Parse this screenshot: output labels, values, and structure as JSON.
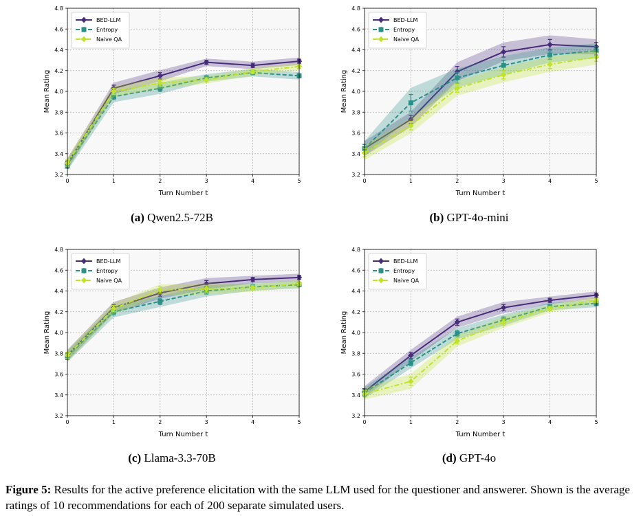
{
  "figure_caption": {
    "label": "Figure 5:",
    "text": "Results for the active preference elicitation with the same LLM used for the questioner and answerer. Shown is the average ratings of 10 recommendations for each of 200 separate simulated users."
  },
  "colors": {
    "bed": "#472c7a",
    "entropy": "#2a9088",
    "naive": "#bfe22a",
    "grid": "#b0b0b0",
    "plot_bg": "#f8f8f8"
  },
  "chart_data": [
    {
      "type": "line",
      "panel_label": "(a)",
      "title": "Qwen2.5-72B",
      "xlabel": "Turn Number t",
      "ylabel": "Mean Rating",
      "x": [
        0,
        1,
        2,
        3,
        4,
        5
      ],
      "xlim": [
        0,
        5
      ],
      "ylim": [
        3.2,
        4.8
      ],
      "yticks": [
        "3.2",
        "3.4",
        "3.6",
        "3.8",
        "4.0",
        "4.2",
        "4.4",
        "4.6",
        "4.8"
      ],
      "xticks": [
        "0",
        "1",
        "2",
        "3",
        "4",
        "5"
      ],
      "legend": "top-left",
      "series": [
        {
          "name": "BED-LLM",
          "values": [
            3.3,
            4.03,
            4.15,
            4.28,
            4.25,
            4.29
          ],
          "err": [
            0.03,
            0.03,
            0.03,
            0.02,
            0.02,
            0.02
          ]
        },
        {
          "name": "Entropy",
          "values": [
            3.29,
            3.95,
            4.03,
            4.13,
            4.18,
            4.15
          ],
          "err": [
            0.03,
            0.03,
            0.03,
            0.02,
            0.02,
            0.02
          ]
        },
        {
          "name": "Naive QA",
          "values": [
            3.31,
            4.0,
            4.08,
            4.11,
            4.19,
            4.24
          ],
          "err": [
            0.03,
            0.03,
            0.03,
            0.02,
            0.02,
            0.02
          ]
        }
      ]
    },
    {
      "type": "line",
      "panel_label": "(b)",
      "title": "GPT-4o-mini",
      "xlabel": "Turn Number t",
      "ylabel": "Mean Rating",
      "x": [
        0,
        1,
        2,
        3,
        4,
        5
      ],
      "xlim": [
        0,
        5
      ],
      "ylim": [
        3.2,
        4.8
      ],
      "yticks": [
        "3.2",
        "3.4",
        "3.6",
        "3.8",
        "4.0",
        "4.2",
        "4.4",
        "4.6",
        "4.8"
      ],
      "xticks": [
        "0",
        "1",
        "2",
        "3",
        "4",
        "5"
      ],
      "legend": "top-left",
      "series": [
        {
          "name": "BED-LLM",
          "values": [
            3.45,
            3.73,
            4.19,
            4.38,
            4.45,
            4.43
          ],
          "err": [
            0.04,
            0.04,
            0.05,
            0.05,
            0.05,
            0.04
          ]
        },
        {
          "name": "Entropy",
          "values": [
            3.45,
            3.89,
            4.13,
            4.25,
            4.35,
            4.39
          ],
          "err": [
            0.04,
            0.08,
            0.05,
            0.05,
            0.04,
            0.04
          ]
        },
        {
          "name": "Naive QA",
          "values": [
            3.41,
            3.67,
            4.03,
            4.16,
            4.26,
            4.33
          ],
          "err": [
            0.04,
            0.04,
            0.04,
            0.04,
            0.04,
            0.04
          ]
        }
      ]
    },
    {
      "type": "line",
      "panel_label": "(c)",
      "title": "Llama-3.3-70B",
      "xlabel": "Turn Number t",
      "ylabel": "Mean Rating",
      "x": [
        0,
        1,
        2,
        3,
        4,
        5
      ],
      "xlim": [
        0,
        5
      ],
      "ylim": [
        3.2,
        4.8
      ],
      "yticks": [
        "3.2",
        "3.4",
        "3.6",
        "3.8",
        "4.0",
        "4.2",
        "4.4",
        "4.6",
        "4.8"
      ],
      "xticks": [
        "0",
        "1",
        "2",
        "3",
        "4",
        "5"
      ],
      "legend": "top-left",
      "series": [
        {
          "name": "BED-LLM",
          "values": [
            3.78,
            4.24,
            4.38,
            4.47,
            4.51,
            4.53
          ],
          "err": [
            0.03,
            0.03,
            0.03,
            0.03,
            0.02,
            0.02
          ]
        },
        {
          "name": "Entropy",
          "values": [
            3.77,
            4.2,
            4.3,
            4.4,
            4.44,
            4.46
          ],
          "err": [
            0.03,
            0.03,
            0.03,
            0.03,
            0.02,
            0.02
          ]
        },
        {
          "name": "Naive QA",
          "values": [
            3.78,
            4.23,
            4.41,
            4.42,
            4.43,
            4.47
          ],
          "err": [
            0.03,
            0.03,
            0.03,
            0.03,
            0.02,
            0.02
          ]
        }
      ]
    },
    {
      "type": "line",
      "panel_label": "(d)",
      "title": "GPT-4o",
      "xlabel": "Turn Number t",
      "ylabel": "Mean Rating",
      "x": [
        0,
        1,
        2,
        3,
        4,
        5
      ],
      "xlim": [
        0,
        5
      ],
      "ylim": [
        3.2,
        4.8
      ],
      "yticks": [
        "3.2",
        "3.4",
        "3.6",
        "3.8",
        "4.0",
        "4.2",
        "4.4",
        "4.6",
        "4.8"
      ],
      "xticks": [
        "0",
        "1",
        "2",
        "3",
        "4",
        "5"
      ],
      "legend": "top-left",
      "series": [
        {
          "name": "BED-LLM",
          "values": [
            3.43,
            3.78,
            4.1,
            4.24,
            4.31,
            4.36
          ],
          "err": [
            0.03,
            0.03,
            0.03,
            0.03,
            0.02,
            0.02
          ]
        },
        {
          "name": "Entropy",
          "values": [
            3.42,
            3.71,
            3.99,
            4.12,
            4.25,
            4.28
          ],
          "err": [
            0.03,
            0.03,
            0.03,
            0.03,
            0.02,
            0.02
          ]
        },
        {
          "name": "Naive QA",
          "values": [
            3.41,
            3.53,
            3.92,
            4.1,
            4.23,
            4.31
          ],
          "err": [
            0.03,
            0.04,
            0.03,
            0.03,
            0.02,
            0.02
          ]
        }
      ]
    }
  ]
}
